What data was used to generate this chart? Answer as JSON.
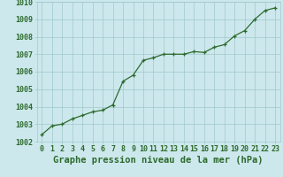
{
  "x": [
    0,
    1,
    2,
    3,
    4,
    5,
    6,
    7,
    8,
    9,
    10,
    11,
    12,
    13,
    14,
    15,
    16,
    17,
    18,
    19,
    20,
    21,
    22,
    23
  ],
  "y": [
    1002.4,
    1002.9,
    1003.0,
    1003.3,
    1003.5,
    1003.7,
    1003.8,
    1004.1,
    1005.45,
    1005.8,
    1006.65,
    1006.8,
    1007.0,
    1007.0,
    1007.0,
    1007.15,
    1007.1,
    1007.4,
    1007.55,
    1008.05,
    1008.35,
    1009.0,
    1009.5,
    1009.65
  ],
  "xlabel": "Graphe pression niveau de la mer (hPa)",
  "ylim": [
    1002,
    1010
  ],
  "xlim_min": -0.5,
  "xlim_max": 23.5,
  "yticks": [
    1002,
    1003,
    1004,
    1005,
    1006,
    1007,
    1008,
    1009,
    1010
  ],
  "xticks": [
    0,
    1,
    2,
    3,
    4,
    5,
    6,
    7,
    8,
    9,
    10,
    11,
    12,
    13,
    14,
    15,
    16,
    17,
    18,
    19,
    20,
    21,
    22,
    23
  ],
  "line_color": "#2d6a2d",
  "marker_color": "#2d6a2d",
  "bg_color": "#cce8ec",
  "grid_color": "#a0c8cc",
  "tick_color": "#2d6a2d",
  "label_color": "#2d6a2d",
  "font_size_label": 7.5,
  "font_size_tick": 6.0
}
